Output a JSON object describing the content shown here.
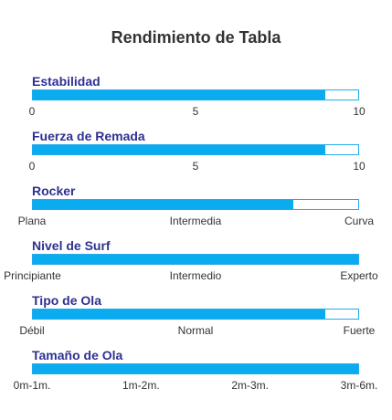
{
  "accent_color": "#0babf0",
  "label_color": "#2e3192",
  "chart_data": {
    "type": "bar",
    "title": "Rendimiento de Tabla",
    "categories": [
      "Estabilidad",
      "Fuerza de Remada",
      "Rocker",
      "Nivel de Surf",
      "Tipo de Ola",
      "Tamaño de Ola"
    ],
    "series": [
      {
        "values": [
          0.9,
          0.9,
          0.8,
          1.0,
          0.9,
          1.0
        ]
      }
    ],
    "scales": [
      [
        "0",
        "5",
        "10"
      ],
      [
        "0",
        "5",
        "10"
      ],
      [
        "Plana",
        "Intermedia",
        "Curva"
      ],
      [
        "Principiante",
        "Intermedio",
        "Experto"
      ],
      [
        "Débil",
        "Normal",
        "Fuerte"
      ],
      [
        "0m-1m.",
        "1m-2m.",
        "2m-3m.",
        "3m-6m."
      ]
    ],
    "xlim": [
      0,
      1
    ],
    "grid": false,
    "legend": "none"
  }
}
